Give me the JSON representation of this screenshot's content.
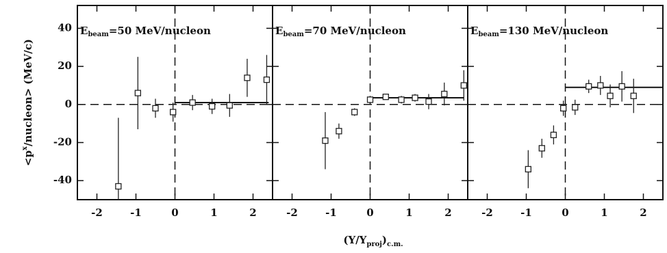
{
  "figure": {
    "xlabel": [
      "(Y/Y",
      "proj",
      ")",
      "c.m."
    ],
    "ylabel": [
      "<p",
      "x",
      "/nucleon> (MeV/c)"
    ]
  },
  "chart_data": [
    {
      "type": "scatter",
      "annotation": [
        "E",
        "beam",
        "=50 MeV/nucleon"
      ],
      "xlim": [
        -2.5,
        2.5
      ],
      "xticks": [
        -2,
        -1,
        0,
        1,
        2
      ],
      "ylim": [
        -50,
        52
      ],
      "yticks": [
        -40,
        -20,
        0,
        20,
        40
      ],
      "show_ytick_labels": true,
      "x": [
        -1.45,
        -0.95,
        -0.5,
        -0.05,
        0.45,
        0.95,
        1.4,
        1.85,
        2.35
      ],
      "values": [
        -43,
        6,
        -2,
        -4,
        1,
        -1,
        -0.5,
        14,
        13
      ],
      "errors": [
        36,
        19,
        5,
        5,
        4,
        4,
        6,
        10,
        13
      ],
      "fit": {
        "x": [
          0,
          2.4
        ],
        "y": [
          1,
          1
        ]
      },
      "hlines": [
        0
      ],
      "vlines": [
        0
      ]
    },
    {
      "type": "scatter",
      "annotation": [
        "E",
        "beam",
        "=70 MeV/nucleon"
      ],
      "xlim": [
        -2.5,
        2.5
      ],
      "xticks": [
        -2,
        -1,
        0,
        1,
        2
      ],
      "ylim": [
        -50,
        52
      ],
      "yticks": [
        -40,
        -20,
        0,
        20,
        40
      ],
      "show_ytick_labels": false,
      "x": [
        -1.15,
        -0.8,
        -0.4,
        0.0,
        0.4,
        0.8,
        1.15,
        1.5,
        1.9,
        2.4
      ],
      "values": [
        -19,
        -14,
        -4,
        2.5,
        4,
        2.5,
        3.5,
        1.5,
        5.5,
        10
      ],
      "errors": [
        15,
        4,
        2,
        2,
        1.5,
        2,
        2,
        4,
        6,
        8
      ],
      "fit": {
        "x": [
          0,
          2.4
        ],
        "y": [
          3.5,
          3.5
        ]
      },
      "hlines": [
        0
      ],
      "vlines": [
        0
      ]
    },
    {
      "type": "scatter",
      "annotation": [
        "E",
        "beam",
        "=130 MeV/nucleon"
      ],
      "xlim": [
        -2.5,
        2.5
      ],
      "xticks": [
        -2,
        -1,
        0,
        1,
        2
      ],
      "ylim": [
        -50,
        52
      ],
      "yticks": [
        -40,
        -20,
        0,
        20,
        40
      ],
      "show_ytick_labels": false,
      "x": [
        -0.95,
        -0.6,
        -0.3,
        -0.05,
        0.25,
        0.6,
        0.9,
        1.15,
        1.45,
        1.75
      ],
      "values": [
        -34,
        -23,
        -16,
        -2,
        -1.5,
        9.5,
        10,
        4.5,
        9.5,
        4.5
      ],
      "errors": [
        10,
        5,
        5,
        4,
        4,
        3.5,
        5,
        6,
        8,
        9
      ],
      "fit": {
        "x": [
          0,
          2.5
        ],
        "y": [
          9,
          9
        ]
      },
      "hlines": [
        0
      ],
      "vlines": [
        0
      ]
    }
  ]
}
